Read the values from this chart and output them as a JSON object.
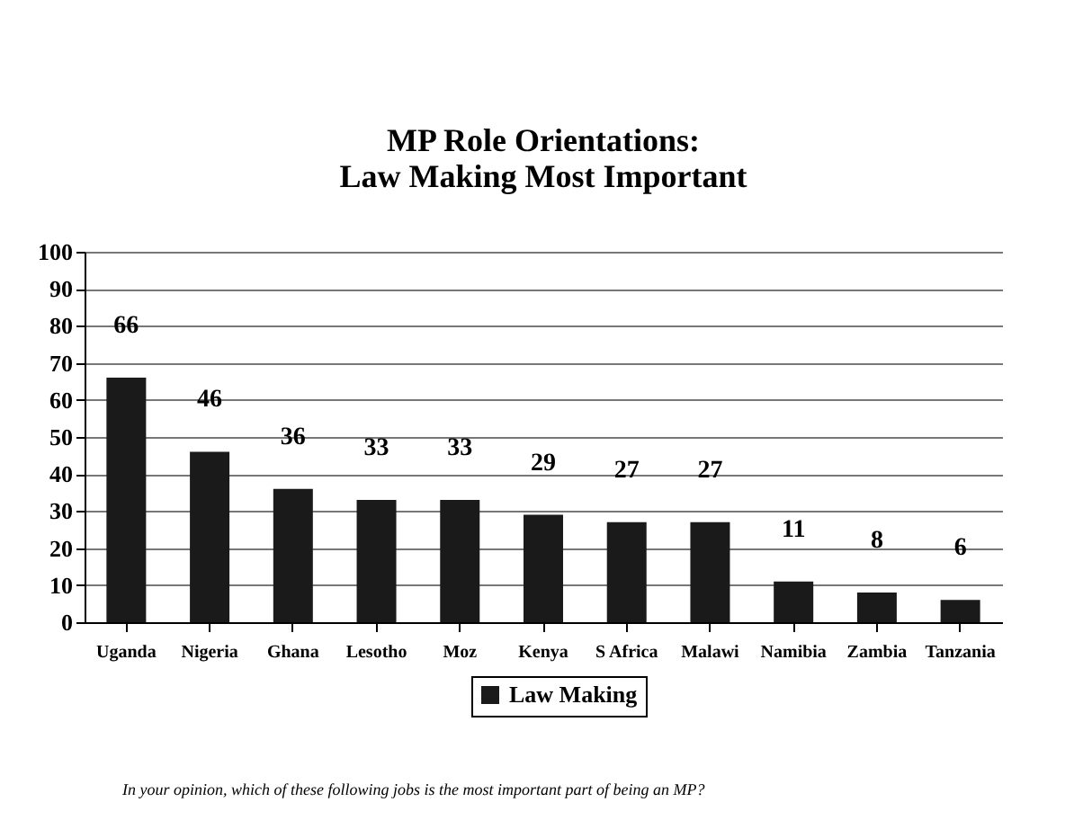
{
  "chart_data": {
    "type": "bar",
    "title": "MP Role Orientations:\nLaw Making Most Important",
    "categories": [
      "Uganda",
      "Nigeria",
      "Ghana",
      "Lesotho",
      "Moz",
      "Kenya",
      "S Africa",
      "Malawi",
      "Namibia",
      "Zambia",
      "Tanzania"
    ],
    "series": [
      {
        "name": "Law Making",
        "color": "#1a1a1a",
        "values": [
          66,
          46,
          36,
          33,
          33,
          29,
          27,
          27,
          11,
          8,
          6
        ]
      }
    ],
    "ylim": [
      0,
      100
    ],
    "yticks": [
      0,
      10,
      20,
      30,
      40,
      50,
      60,
      70,
      80,
      90,
      100
    ],
    "grid": "y",
    "legend": "bottom",
    "data_labels": true,
    "annotations": [
      "In your opinion, which of these following jobs is the most important part of being an MP?"
    ]
  }
}
